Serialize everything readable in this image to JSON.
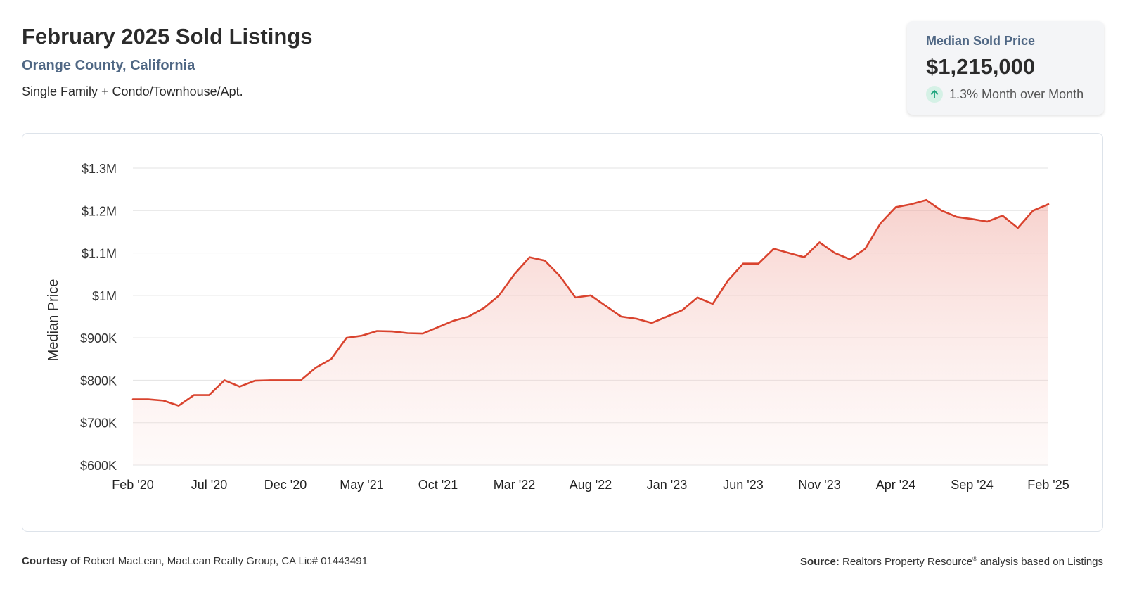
{
  "header": {
    "title": "February 2025 Sold Listings",
    "location": "Orange County, California",
    "property_types": "Single Family + Condo/Townhouse/Apt."
  },
  "kpi": {
    "label": "Median Sold Price",
    "value": "$1,215,000",
    "change": "1.3% Month over Month",
    "direction_icon": "arrow-up-icon",
    "accent_color": "#1aa37a"
  },
  "chart_data": {
    "type": "area",
    "title": "",
    "xlabel": "",
    "ylabel": "Median Price",
    "ylim": [
      600000,
      1300000
    ],
    "y_ticks": [
      600000,
      700000,
      800000,
      900000,
      1000000,
      1100000,
      1200000,
      1300000
    ],
    "y_tick_labels": [
      "$600K",
      "$700K",
      "$800K",
      "$900K",
      "$1M",
      "$1.1M",
      "$1.2M",
      "$1.3M"
    ],
    "x_tick_labels": [
      "Feb '20",
      "Jul '20",
      "Dec '20",
      "May '21",
      "Oct '21",
      "Mar '22",
      "Aug '22",
      "Jan '23",
      "Jun '23",
      "Nov '23",
      "Apr '24",
      "Sep '24",
      "Feb '25"
    ],
    "x_tick_every": 5,
    "grid": true,
    "line_color": "#d9432e",
    "fill_color": "#f2a9a0",
    "series": [
      {
        "name": "Median Sold Price",
        "values": [
          755000,
          755000,
          752000,
          740000,
          765000,
          765000,
          800000,
          785000,
          799000,
          800000,
          800000,
          800000,
          830000,
          850000,
          900000,
          905000,
          916000,
          915000,
          911000,
          910000,
          925000,
          940000,
          950000,
          970000,
          1000000,
          1050000,
          1090000,
          1082000,
          1045000,
          995000,
          1000000,
          975000,
          950000,
          945000,
          935000,
          950000,
          965000,
          995000,
          980000,
          1035000,
          1075000,
          1075000,
          1110000,
          1100000,
          1090000,
          1125000,
          1100000,
          1085000,
          1110000,
          1170000,
          1208000,
          1215000,
          1225000,
          1200000,
          1185000,
          1180000,
          1174000,
          1188000,
          1159000,
          1200000,
          1215000
        ]
      }
    ]
  },
  "footer": {
    "courtesy_label": "Courtesy of",
    "courtesy_text": "Robert MacLean, MacLean Realty Group, CA Lic# 01443491",
    "source_label": "Source:",
    "source_text": "Realtors Property Resource",
    "source_mark": "®",
    "source_suffix": "analysis based on Listings"
  }
}
